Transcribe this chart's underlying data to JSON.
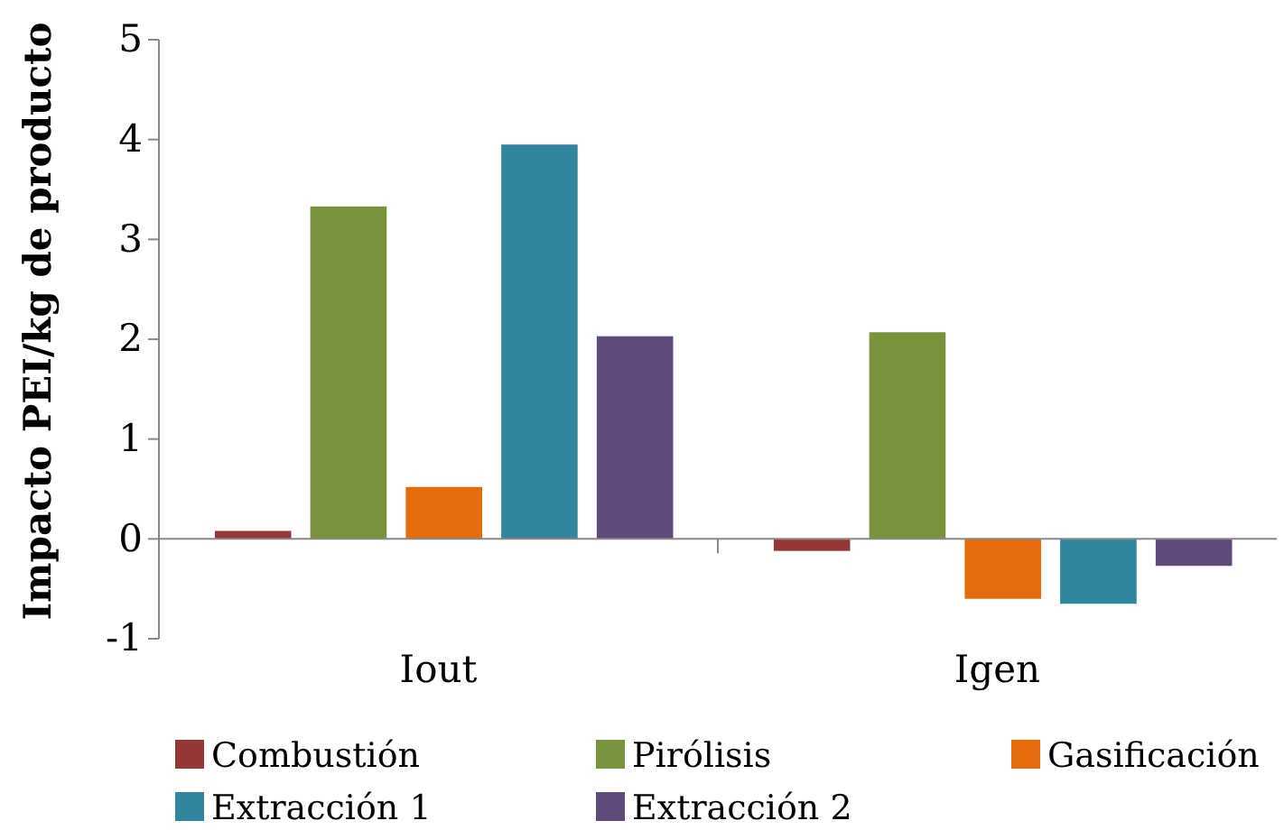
{
  "chart_data": {
    "type": "bar",
    "ylabel": "Impacto PEI/kg de producto",
    "categories": [
      "Iout",
      "Igen"
    ],
    "series": [
      {
        "name": "Combustión",
        "color": "#953735",
        "values": [
          0.08,
          -0.12
        ]
      },
      {
        "name": "Pirólisis",
        "color": "#77933c",
        "values": [
          3.33,
          2.07
        ]
      },
      {
        "name": "Gasificación",
        "color": "#e46c0a",
        "values": [
          0.52,
          -0.6
        ]
      },
      {
        "name": "Extracción 1",
        "color": "#31859c",
        "values": [
          3.95,
          -0.65
        ]
      },
      {
        "name": "Extracción 2",
        "color": "#604a7b",
        "values": [
          2.03,
          -0.27
        ]
      }
    ],
    "ylim": [
      -1,
      5
    ],
    "yticks": [
      -1,
      0,
      1,
      2,
      3,
      4,
      5
    ],
    "legend": "bottom"
  }
}
